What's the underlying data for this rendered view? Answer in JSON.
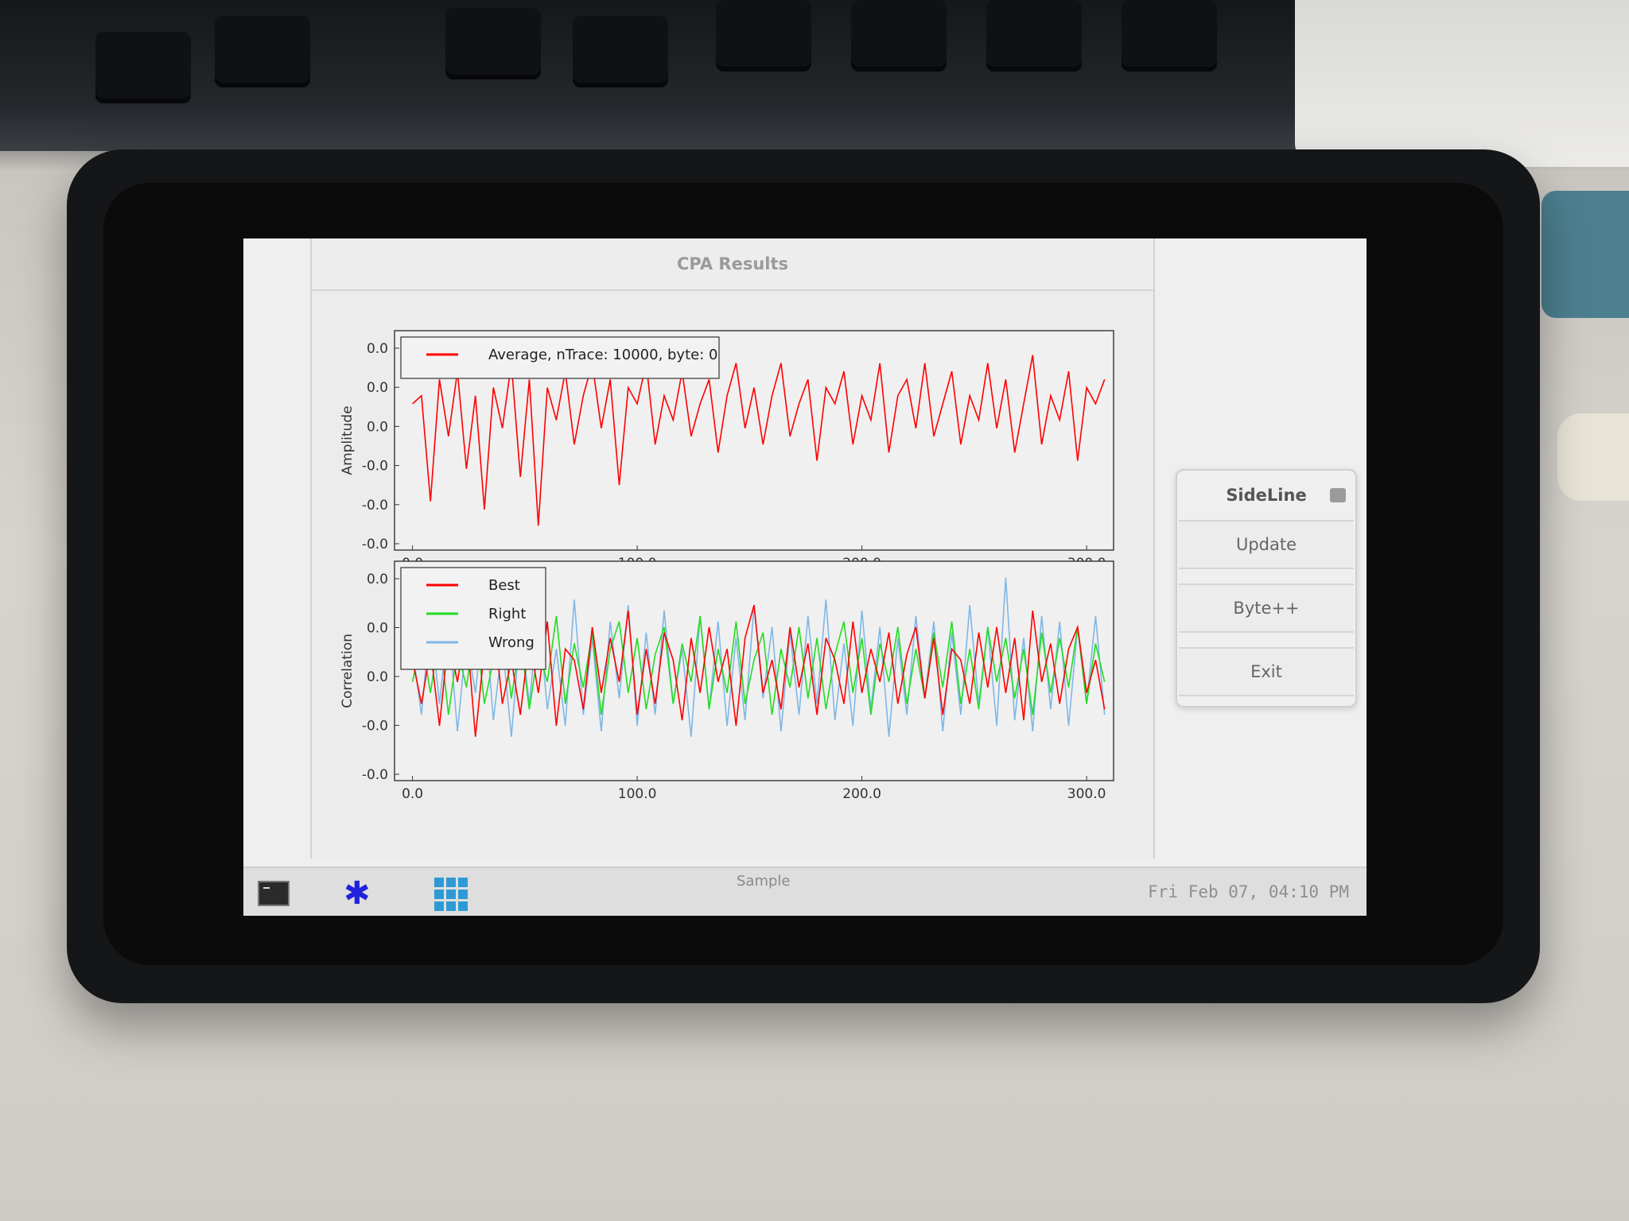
{
  "window": {
    "title": "CPA Results"
  },
  "sideline": {
    "title": "SideLine",
    "buttons": {
      "update": "Update",
      "byte_inc": "Byte++",
      "exit": "Exit"
    }
  },
  "taskbar": {
    "clock": "Fri Feb 07, 04:10 PM",
    "icons": [
      "terminal-icon",
      "star-launcher-icon",
      "app-grid-icon"
    ]
  },
  "colors": {
    "best": "#ff0000",
    "right": "#22dd22",
    "wrong": "#7fb7e6",
    "app_grid": "#2d9ad6",
    "launcher": "#2222dd"
  },
  "chart_data": [
    {
      "type": "line",
      "xlabel": "Sample",
      "ylabel": "Amplitude",
      "xticks": [
        "0.0",
        "100.0",
        "200.0",
        "300.0"
      ],
      "yticks": [
        "0.0",
        "0.0",
        "0.0",
        "-0.0",
        "-0.0",
        "-0.0"
      ],
      "xlim": [
        -8,
        312
      ],
      "ylim": [
        -0.85,
        0.5
      ],
      "legend_position": "top-left",
      "series": [
        {
          "name": "Average, nTrace: 10000, byte: 0",
          "color": "#ff0000",
          "x_start": 0,
          "x_step": 4,
          "values": [
            0.05,
            0.1,
            -0.55,
            0.2,
            -0.15,
            0.25,
            -0.35,
            0.1,
            -0.6,
            0.15,
            -0.1,
            0.3,
            -0.4,
            0.2,
            -0.7,
            0.15,
            -0.05,
            0.25,
            -0.2,
            0.1,
            0.3,
            -0.1,
            0.2,
            -0.45,
            0.15,
            0.05,
            0.3,
            -0.2,
            0.1,
            -0.05,
            0.25,
            -0.15,
            0.05,
            0.2,
            -0.25,
            0.1,
            0.3,
            -0.1,
            0.15,
            -0.2,
            0.1,
            0.3,
            -0.15,
            0.05,
            0.2,
            -0.3,
            0.15,
            0.05,
            0.25,
            -0.2,
            0.1,
            -0.05,
            0.3,
            -0.25,
            0.1,
            0.2,
            -0.1,
            0.3,
            -0.15,
            0.05,
            0.25,
            -0.2,
            0.1,
            -0.05,
            0.3,
            -0.1,
            0.2,
            -0.25,
            0.05,
            0.35,
            -0.2,
            0.1,
            -0.05,
            0.25,
            -0.3,
            0.15,
            0.05,
            0.2
          ]
        }
      ]
    },
    {
      "type": "line",
      "xlabel": "Sample",
      "ylabel": "Correlation",
      "xticks": [
        "0.0",
        "100.0",
        "200.0",
        "300.0"
      ],
      "yticks": [
        "0.0",
        "0.0",
        "0.0",
        "-0.0",
        "-0.0"
      ],
      "xlim": [
        -8,
        312
      ],
      "ylim": [
        -1.0,
        1.0
      ],
      "legend_position": "top-left",
      "series": [
        {
          "name": "Best",
          "color": "#ff0000",
          "x_start": 0,
          "x_step": 4,
          "values": [
            0.1,
            -0.3,
            0.2,
            -0.5,
            0.3,
            -0.1,
            0.4,
            -0.6,
            0.2,
            0.5,
            -0.3,
            0.1,
            -0.4,
            0.3,
            -0.2,
            0.45,
            -0.5,
            0.2,
            0.1,
            -0.35,
            0.4,
            -0.2,
            0.3,
            -0.1,
            0.55,
            -0.4,
            0.2,
            -0.3,
            0.35,
            0.1,
            -0.45,
            0.3,
            -0.2,
            0.4,
            -0.1,
            0.2,
            -0.5,
            0.3,
            0.6,
            -0.2,
            0.1,
            -0.35,
            0.4,
            -0.15,
            0.25,
            -0.4,
            0.3,
            0.1,
            -0.3,
            0.45,
            -0.2,
            0.2,
            -0.1,
            0.35,
            -0.3,
            0.15,
            0.4,
            -0.25,
            0.3,
            -0.4,
            0.2,
            0.1,
            -0.3,
            0.35,
            -0.15,
            0.4,
            -0.2,
            0.3,
            -0.45,
            0.55,
            -0.1,
            0.25,
            -0.3,
            0.2,
            0.4,
            -0.2,
            0.1,
            -0.35
          ]
        },
        {
          "name": "Right",
          "color": "#22dd22",
          "x_start": 0,
          "x_step": 4,
          "values": [
            -0.1,
            0.3,
            -0.2,
            0.35,
            -0.4,
            0.2,
            -0.15,
            0.45,
            -0.3,
            0.1,
            0.4,
            -0.25,
            0.3,
            -0.35,
            0.2,
            -0.1,
            0.5,
            -0.3,
            0.25,
            -0.15,
            0.35,
            -0.4,
            0.2,
            0.45,
            -0.2,
            0.3,
            -0.35,
            0.15,
            0.4,
            -0.3,
            0.25,
            -0.1,
            0.5,
            -0.35,
            0.2,
            -0.2,
            0.45,
            -0.3,
            0.1,
            0.35,
            -0.4,
            0.2,
            -0.15,
            0.4,
            -0.25,
            0.3,
            -0.35,
            0.15,
            0.45,
            -0.2,
            0.3,
            -0.4,
            0.25,
            -0.1,
            0.4,
            -0.3,
            0.2,
            -0.25,
            0.35,
            -0.15,
            0.45,
            -0.3,
            0.2,
            -0.35,
            0.4,
            -0.1,
            0.3,
            -0.25,
            0.2,
            -0.4,
            0.35,
            -0.2,
            0.3,
            -0.15,
            0.4,
            -0.3,
            0.25,
            -0.1
          ]
        },
        {
          "name": "Wrong",
          "color": "#7fb7e6",
          "x_start": 0,
          "x_step": 4,
          "values": [
            0.2,
            -0.4,
            0.5,
            -0.3,
            0.45,
            -0.55,
            0.3,
            -0.2,
            0.6,
            -0.45,
            0.25,
            -0.6,
            0.4,
            -0.3,
            0.55,
            -0.35,
            0.2,
            -0.5,
            0.65,
            -0.4,
            0.3,
            -0.55,
            0.45,
            -0.25,
            0.6,
            -0.5,
            0.35,
            -0.4,
            0.55,
            -0.3,
            0.2,
            -0.6,
            0.5,
            -0.35,
            0.45,
            -0.5,
            0.3,
            -0.45,
            0.6,
            -0.25,
            0.4,
            -0.55,
            0.35,
            -0.4,
            0.5,
            -0.3,
            0.65,
            -0.45,
            0.25,
            -0.5,
            0.55,
            -0.35,
            0.4,
            -0.6,
            0.3,
            -0.4,
            0.5,
            -0.25,
            0.45,
            -0.55,
            0.35,
            -0.4,
            0.6,
            -0.3,
            0.4,
            -0.5,
            0.85,
            -0.45,
            0.3,
            -0.55,
            0.5,
            -0.35,
            0.45,
            -0.5,
            0.4,
            -0.3,
            0.5,
            -0.4
          ]
        }
      ]
    }
  ]
}
